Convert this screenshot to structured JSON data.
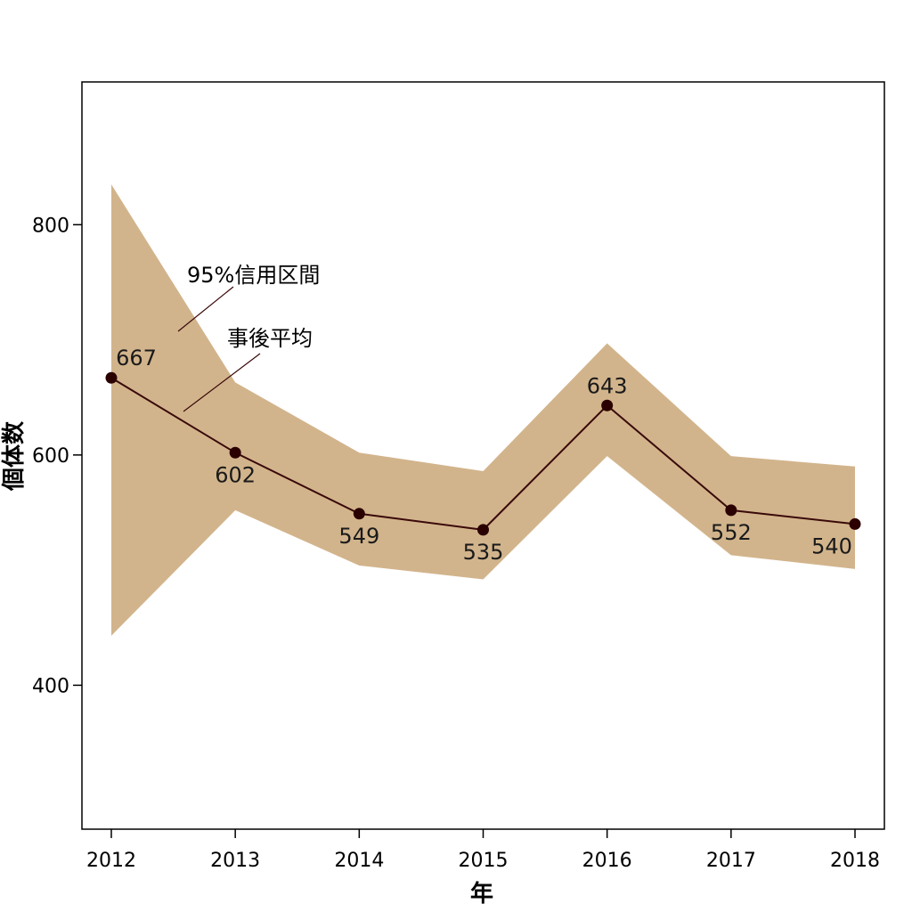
{
  "chart_data": {
    "type": "line",
    "title": "",
    "xlabel": "年",
    "ylabel": "個体数",
    "x": [
      "2012",
      "2013",
      "2014",
      "2015",
      "2016",
      "2017",
      "2018"
    ],
    "series": [
      {
        "name": "事後平均",
        "values": [
          667,
          602,
          549,
          535,
          643,
          552,
          540
        ],
        "labels": [
          "667",
          "602",
          "549",
          "535",
          "643",
          "552",
          "540"
        ]
      }
    ],
    "ci_band": {
      "name": "95%信用区間",
      "lower": [
        443,
        552,
        504,
        492,
        599,
        513,
        501
      ],
      "upper": [
        835,
        663,
        602,
        586,
        697,
        599,
        590
      ]
    },
    "yticks": [
      400,
      600,
      800
    ],
    "ytick_labels": [
      "400",
      "600",
      "800"
    ],
    "ylim": [
      275,
      924
    ],
    "grid": false,
    "colors": {
      "band": "#d2b48c",
      "line": "#3a0a0a",
      "point": "#2a0000",
      "annotation_line": "#3a0a0a"
    }
  }
}
